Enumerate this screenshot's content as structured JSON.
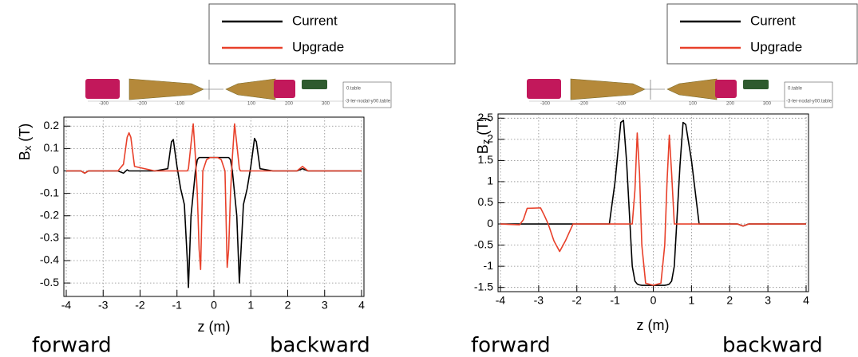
{
  "chart_data": [
    {
      "type": "line",
      "ylabel": {
        "symbol": "B",
        "subscript": "x",
        "unit": "(T)"
      },
      "xlabel": "z (m)",
      "annotations": [
        "forward",
        "backward"
      ],
      "inset": {
        "ticks": [
          -300,
          -200,
          -100,
          100,
          200,
          300
        ],
        "labels": [
          "0.table",
          "-3-ler-nodal-y00.table"
        ]
      },
      "xlim": [
        -4,
        4
      ],
      "xticks": [
        -4,
        -3,
        -2,
        -1,
        0,
        1,
        2,
        3,
        4
      ],
      "ylim": [
        -0.56,
        0.24
      ],
      "yticks": [
        0.2,
        0.1,
        0,
        -0.1,
        -0.2,
        -0.3,
        -0.4,
        -0.5
      ],
      "grid": true,
      "x": [
        -4,
        -3.6,
        -3.5,
        -3.4,
        -2.6,
        -2.45,
        -2.35,
        -2.3,
        -2.25,
        -2.15,
        -1.6,
        -1.25,
        -1.15,
        -1.1,
        -1.0,
        -0.9,
        -0.8,
        -0.72,
        -0.69,
        -0.62,
        -0.56,
        -0.5,
        -0.45,
        -0.4,
        -0.36,
        -0.3,
        -0.2,
        -0.1,
        0,
        0.1,
        0.2,
        0.3,
        0.36,
        0.4,
        0.45,
        0.5,
        0.56,
        0.62,
        0.69,
        0.72,
        0.8,
        0.9,
        1.0,
        1.1,
        1.15,
        1.25,
        1.6,
        2.25,
        2.4,
        2.55,
        4
      ],
      "series": [
        {
          "name": "Current",
          "color": "#000000",
          "values": [
            0,
            0,
            -0.01,
            0,
            0,
            -0.01,
            0.005,
            0,
            0,
            0,
            0,
            0.01,
            0.13,
            0.14,
            0.02,
            -0.08,
            -0.15,
            -0.4,
            -0.52,
            -0.2,
            -0.1,
            0.0,
            0.05,
            0.06,
            0.06,
            0.06,
            0.06,
            0.06,
            0.06,
            0.06,
            0.06,
            0.06,
            0.06,
            0.06,
            0.05,
            0.0,
            -0.1,
            -0.2,
            -0.5,
            -0.4,
            -0.15,
            -0.08,
            0.02,
            0.145,
            0.13,
            0.01,
            0,
            0,
            0.01,
            0,
            0
          ]
        },
        {
          "name": "Upgrade",
          "color": "#e8402a",
          "values": [
            0,
            0,
            -0.01,
            0,
            0,
            0.03,
            0.15,
            0.17,
            0.15,
            0.02,
            0,
            0,
            0,
            0,
            0,
            0,
            0,
            0,
            0.01,
            0.12,
            0.21,
            0.06,
            -0.1,
            -0.35,
            -0.44,
            0.0,
            0.05,
            0.06,
            0.06,
            0.06,
            0.05,
            0.0,
            -0.43,
            -0.35,
            -0.1,
            0.06,
            0.21,
            0.12,
            0.01,
            0,
            0,
            0,
            0,
            0,
            0,
            0,
            0,
            0,
            0.02,
            0,
            0
          ]
        }
      ]
    },
    {
      "type": "line",
      "ylabel": {
        "symbol": "B",
        "subscript": "z",
        "unit": "(T)"
      },
      "xlabel": "z (m)",
      "annotations": [
        "forward",
        "backward"
      ],
      "inset": {
        "ticks": [
          -300,
          -200,
          -100,
          100,
          200,
          300
        ],
        "labels": [
          "0.table",
          "-3-ler-nodal-y00.table"
        ]
      },
      "xlim": [
        -4,
        4
      ],
      "xticks": [
        -4,
        -3,
        -2,
        -1,
        0,
        1,
        2,
        3,
        4
      ],
      "ylim": [
        -1.6,
        2.6
      ],
      "yticks": [
        2.5,
        2,
        1.5,
        1,
        0.5,
        0,
        -0.5,
        -1,
        -1.5
      ],
      "grid": true,
      "x": [
        -4,
        -3.5,
        -3.4,
        -3.3,
        -2.95,
        -2.85,
        -2.75,
        -2.6,
        -2.45,
        -2.3,
        -2.1,
        -1.6,
        -1.15,
        -1.0,
        -0.85,
        -0.78,
        -0.7,
        -0.55,
        -0.48,
        -0.42,
        -0.36,
        -0.3,
        -0.2,
        0,
        0.2,
        0.3,
        0.36,
        0.42,
        0.48,
        0.55,
        0.7,
        0.78,
        0.85,
        1.0,
        1.2,
        1.6,
        2.2,
        2.35,
        2.5,
        4
      ],
      "series": [
        {
          "name": "Current",
          "color": "#000000",
          "values": [
            0,
            0,
            0,
            0,
            0,
            0,
            0,
            0,
            0,
            0,
            0,
            0,
            0,
            1.0,
            2.4,
            2.45,
            1.5,
            -1.0,
            -1.35,
            -1.42,
            -1.44,
            -1.45,
            -1.45,
            -1.45,
            -1.45,
            -1.45,
            -1.44,
            -1.42,
            -1.35,
            -1.0,
            1.4,
            2.4,
            2.35,
            1.5,
            0,
            0,
            0,
            -0.05,
            0,
            0
          ]
        },
        {
          "name": "Upgrade",
          "color": "#e8402a",
          "values": [
            0,
            -0.02,
            0.1,
            0.37,
            0.38,
            0.2,
            0,
            -0.4,
            -0.65,
            -0.4,
            0,
            0,
            0,
            0,
            0,
            0,
            0,
            0,
            0.8,
            2.15,
            1.2,
            -0.5,
            -1.4,
            -1.45,
            -1.4,
            -0.5,
            1.0,
            2.1,
            1.2,
            0,
            0,
            0,
            0,
            0,
            0,
            0,
            0,
            -0.05,
            0,
            0
          ]
        }
      ]
    }
  ]
}
